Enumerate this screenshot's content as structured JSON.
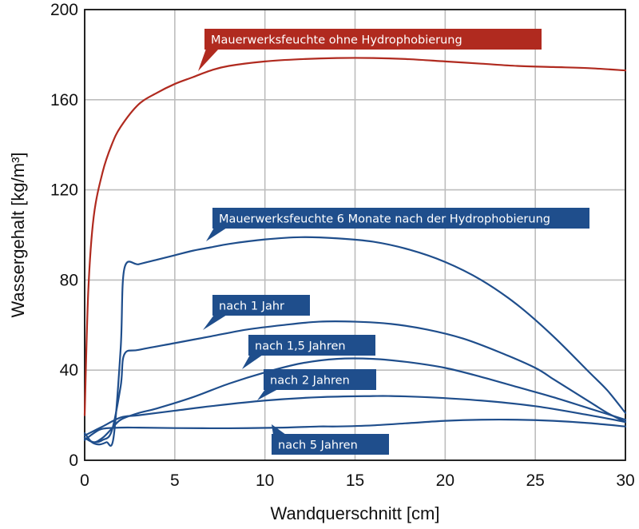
{
  "chart_data": {
    "type": "line",
    "title": "",
    "xlabel": "Wandquerschnitt [cm]",
    "ylabel": "Wassergehalt [kg/m³]",
    "xlim": [
      0,
      30
    ],
    "ylim": [
      0,
      200
    ],
    "xticks": [
      0,
      5,
      10,
      15,
      20,
      25,
      30
    ],
    "yticks": [
      0,
      40,
      80,
      120,
      160,
      200
    ],
    "grid": true,
    "series": [
      {
        "name": "Mauerwerksfeuchte ohne Hydrophobierung",
        "color": "#b02a1f",
        "x": [
          0,
          0.2,
          0.5,
          1,
          1.5,
          2,
          3,
          4,
          5,
          6,
          7,
          8,
          10,
          12,
          14,
          16,
          18,
          20,
          22,
          24,
          26,
          28,
          30
        ],
        "y": [
          20,
          75,
          108,
          128,
          140,
          148,
          158,
          163,
          167,
          170,
          173,
          175,
          177,
          178,
          178.5,
          178.5,
          178,
          177,
          176,
          175,
          174.5,
          174,
          173
        ]
      },
      {
        "name": "Mauerwerksfeuchte 6 Monate nach der Hydrophobierung",
        "color": "#1f4e8c",
        "x": [
          0,
          0.4,
          0.8,
          1.2,
          1.6,
          2.0,
          2.2,
          3,
          4,
          5,
          6,
          7,
          8,
          10,
          12,
          14,
          16,
          18,
          20,
          22,
          24,
          26,
          28,
          29,
          30
        ],
        "y": [
          12,
          8,
          7,
          8,
          10,
          50,
          85,
          87,
          89,
          91,
          93,
          94.5,
          96,
          98,
          99,
          98.5,
          97,
          93.5,
          88,
          80,
          69,
          55,
          39,
          31,
          21
        ]
      },
      {
        "name": "nach 1 Jahr",
        "color": "#1f4e8c",
        "x": [
          0,
          0.5,
          1,
          1.5,
          2.0,
          2.2,
          3,
          5,
          7,
          9,
          11,
          13,
          15,
          17,
          19,
          21,
          23,
          25,
          26,
          27,
          28,
          29,
          30
        ],
        "y": [
          10,
          8,
          9,
          13,
          33,
          47,
          49,
          52,
          55,
          58,
          60,
          61.5,
          61.5,
          60.5,
          58,
          54,
          48,
          41,
          36,
          31,
          26,
          21,
          17
        ]
      },
      {
        "name": "nach 1,5 Jahren",
        "color": "#1f4e8c",
        "x": [
          0,
          0.5,
          1,
          1.5,
          2,
          3,
          4,
          6,
          8,
          10,
          12,
          14,
          16,
          18,
          20,
          22,
          24,
          26,
          28,
          30
        ],
        "y": [
          10,
          8,
          10,
          14,
          18,
          21,
          23,
          28,
          34,
          39,
          43,
          45,
          45,
          43.5,
          41,
          37,
          32.5,
          28,
          23,
          18
        ]
      },
      {
        "name": "nach 2 Jahren",
        "color": "#1f4e8c",
        "x": [
          0,
          0.5,
          1,
          2,
          3,
          5,
          7,
          10,
          13,
          16,
          17,
          19,
          22,
          25,
          28,
          30
        ],
        "y": [
          11,
          13,
          15,
          19,
          20,
          22,
          24,
          26.5,
          28,
          28.5,
          28.5,
          28,
          26.5,
          24,
          20,
          17
        ]
      },
      {
        "name": "nach 5 Jahren",
        "color": "#1f4e8c",
        "x": [
          0,
          0.5,
          1,
          2,
          3,
          5,
          8,
          11,
          13,
          14,
          16,
          18,
          20,
          22,
          24,
          26,
          28,
          30
        ],
        "y": [
          9,
          12,
          14,
          14.5,
          14.5,
          14.3,
          14.2,
          14.5,
          15,
          15,
          15.5,
          16.5,
          17.5,
          18,
          18,
          17.5,
          16.5,
          15
        ]
      }
    ]
  },
  "callouts": [
    {
      "text": "Mauerwerksfeuchte ohne Hydrophobierung",
      "color": "#b02a1f"
    },
    {
      "text": "Mauerwerksfeuchte 6 Monate nach der Hydrophobierung",
      "color": "#1f4e8c"
    },
    {
      "text": "nach 1 Jahr",
      "color": "#1f4e8c"
    },
    {
      "text": "nach 1,5 Jahren",
      "color": "#1f4e8c"
    },
    {
      "text": "nach 2 Jahren",
      "color": "#1f4e8c"
    },
    {
      "text": "nach 5 Jahren",
      "color": "#1f4e8c"
    }
  ]
}
